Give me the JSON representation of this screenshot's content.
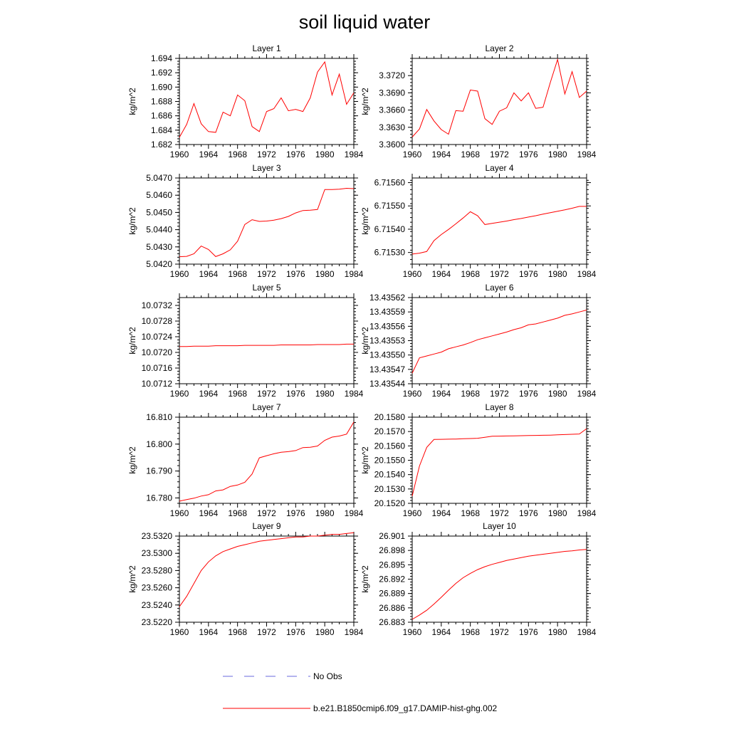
{
  "title": "soil liquid water",
  "legend": [
    {
      "label": "No Obs",
      "color": "#6a6adc",
      "style": "dashed"
    },
    {
      "label": "b.e21.B1850cmip6.f09_g17.DAMIP-hist-ghg.002",
      "color": "#ff0000",
      "style": "solid"
    }
  ],
  "chart_data": [
    {
      "type": "line",
      "title": "Layer 1",
      "ylabel": "kg/m^2",
      "xlim": [
        1960,
        1984
      ],
      "xticks": [
        "1960",
        "1964",
        "1968",
        "1972",
        "1976",
        "1980",
        "1984"
      ],
      "ylim": [
        1.682,
        1.694
      ],
      "yticks": [
        "1.682",
        "1.684",
        "1.686",
        "1.688",
        "1.690",
        "1.692",
        "1.694"
      ],
      "x": [
        1960,
        1961,
        1962,
        1963,
        1964,
        1965,
        1966,
        1967,
        1968,
        1969,
        1970,
        1971,
        1972,
        1973,
        1974,
        1975,
        1976,
        1977,
        1978,
        1979,
        1980,
        1981,
        1982,
        1983,
        1984
      ],
      "series": [
        {
          "values": [
            1.683,
            1.6848,
            1.6877,
            1.6849,
            1.6838,
            1.6837,
            1.6865,
            1.686,
            1.6889,
            1.6881,
            1.6845,
            1.6838,
            1.6866,
            1.687,
            1.6885,
            1.6867,
            1.6869,
            1.6866,
            1.6885,
            1.6921,
            1.6935,
            1.6889,
            1.6918,
            1.6876,
            1.6892
          ]
        }
      ]
    },
    {
      "type": "line",
      "title": "Layer 2",
      "ylabel": "kg/m^2",
      "xlim": [
        1960,
        1984
      ],
      "xticks": [
        "1960",
        "1964",
        "1968",
        "1972",
        "1976",
        "1980",
        "1984"
      ],
      "ylim": [
        3.36,
        3.375
      ],
      "yticks": [
        "3.3600",
        "3.3630",
        "3.3660",
        "3.3690",
        "3.3720"
      ],
      "x": [
        1960,
        1961,
        1962,
        1963,
        1964,
        1965,
        1966,
        1967,
        1968,
        1969,
        1970,
        1971,
        1972,
        1973,
        1974,
        1975,
        1976,
        1977,
        1978,
        1979,
        1980,
        1981,
        1982,
        1983,
        1984
      ],
      "series": [
        {
          "values": [
            3.3613,
            3.3627,
            3.3661,
            3.3641,
            3.3626,
            3.3618,
            3.3659,
            3.3658,
            3.3695,
            3.3693,
            3.3645,
            3.3635,
            3.3658,
            3.3664,
            3.369,
            3.3676,
            3.369,
            3.3663,
            3.3665,
            3.3708,
            3.3748,
            3.3688,
            3.3727,
            3.3682,
            3.3693
          ]
        }
      ]
    },
    {
      "type": "line",
      "title": "Layer 3",
      "ylabel": "kg/m^2",
      "xlim": [
        1960,
        1984
      ],
      "xticks": [
        "1960",
        "1964",
        "1968",
        "1972",
        "1976",
        "1980",
        "1984"
      ],
      "ylim": [
        5.042,
        5.047
      ],
      "yticks": [
        "5.0420",
        "5.0430",
        "5.0440",
        "5.0450",
        "5.0460",
        "5.0470"
      ],
      "x": [
        1960,
        1961,
        1962,
        1963,
        1964,
        1965,
        1966,
        1967,
        1968,
        1969,
        1970,
        1971,
        1972,
        1973,
        1974,
        1975,
        1976,
        1977,
        1978,
        1979,
        1980,
        1981,
        1982,
        1983,
        1984
      ],
      "series": [
        {
          "values": [
            5.04243,
            5.04245,
            5.0426,
            5.04305,
            5.04285,
            5.04244,
            5.0426,
            5.04283,
            5.04333,
            5.0443,
            5.04458,
            5.04448,
            5.0445,
            5.04455,
            5.04464,
            5.04477,
            5.04497,
            5.04511,
            5.04513,
            5.04517,
            5.04633,
            5.04633,
            5.04635,
            5.0464,
            5.04638
          ]
        }
      ]
    },
    {
      "type": "line",
      "title": "Layer 4",
      "ylabel": "kg/m^2",
      "xlim": [
        1960,
        1984
      ],
      "xticks": [
        "1960",
        "1964",
        "1968",
        "1972",
        "1976",
        "1980",
        "1984"
      ],
      "ylim": [
        6.71525,
        6.71562
      ],
      "yticks": [
        "6.71530",
        "6.71540",
        "6.71550",
        "6.71560"
      ],
      "x": [
        1960,
        1961,
        1962,
        1963,
        1964,
        1965,
        1966,
        1967,
        1968,
        1969,
        1970,
        1971,
        1972,
        1973,
        1974,
        1975,
        1976,
        1977,
        1978,
        1979,
        1980,
        1981,
        1982,
        1983,
        1984
      ],
      "series": [
        {
          "values": [
            6.715293,
            6.715297,
            6.715304,
            6.715351,
            6.715377,
            6.715399,
            6.715423,
            6.715448,
            6.715475,
            6.715458,
            6.71542,
            6.715425,
            6.71543,
            6.715435,
            6.715441,
            6.715446,
            6.715452,
            6.715458,
            6.715465,
            6.715471,
            6.715477,
            6.715483,
            6.71549,
            6.715498,
            6.715498
          ]
        }
      ]
    },
    {
      "type": "line",
      "title": "Layer 5",
      "ylabel": "kg/m^2",
      "xlim": [
        1960,
        1984
      ],
      "xticks": [
        "1960",
        "1964",
        "1968",
        "1972",
        "1976",
        "1980",
        "1984"
      ],
      "ylim": [
        10.0712,
        10.0734
      ],
      "yticks": [
        "10.0712",
        "10.0716",
        "10.0720",
        "10.0724",
        "10.0728",
        "10.0732"
      ],
      "x": [
        1960,
        1961,
        1962,
        1963,
        1964,
        1965,
        1966,
        1967,
        1968,
        1969,
        1970,
        1971,
        1972,
        1973,
        1974,
        1975,
        1976,
        1977,
        1978,
        1979,
        1980,
        1981,
        1982,
        1983,
        1984
      ],
      "series": [
        {
          "values": [
            10.07215,
            10.07215,
            10.07216,
            10.07216,
            10.07216,
            10.07217,
            10.07217,
            10.07217,
            10.07217,
            10.07218,
            10.07218,
            10.07218,
            10.07218,
            10.07218,
            10.07219,
            10.07219,
            10.07219,
            10.07219,
            10.07219,
            10.0722,
            10.0722,
            10.0722,
            10.0722,
            10.07221,
            10.07221
          ]
        }
      ]
    },
    {
      "type": "line",
      "title": "Layer 6",
      "ylabel": "kg/m^2",
      "xlim": [
        1960,
        1984
      ],
      "xticks": [
        "1960",
        "1964",
        "1968",
        "1972",
        "1976",
        "1980",
        "1984"
      ],
      "ylim": [
        13.43544,
        13.43562
      ],
      "yticks": [
        "13.43544",
        "13.43547",
        "13.43550",
        "13.43553",
        "13.43556",
        "13.43559",
        "13.43562"
      ],
      "x": [
        1960,
        1961,
        1962,
        1963,
        1964,
        1965,
        1966,
        1967,
        1968,
        1969,
        1970,
        1971,
        1972,
        1973,
        1974,
        1975,
        1976,
        1977,
        1978,
        1979,
        1980,
        1981,
        1982,
        1983,
        1984
      ],
      "series": [
        {
          "values": [
            13.435462,
            13.435494,
            13.435498,
            13.435502,
            13.435506,
            13.435513,
            13.435517,
            13.435521,
            13.435526,
            13.435532,
            13.435536,
            13.43554,
            13.435544,
            13.435548,
            13.435553,
            13.435557,
            13.435563,
            13.435565,
            13.435569,
            13.435573,
            13.435577,
            13.435583,
            13.435586,
            13.43559,
            13.435594
          ]
        }
      ]
    },
    {
      "type": "line",
      "title": "Layer 7",
      "ylabel": "kg/m^2",
      "xlim": [
        1960,
        1984
      ],
      "xticks": [
        "1960",
        "1964",
        "1968",
        "1972",
        "1976",
        "1980",
        "1984"
      ],
      "ylim": [
        16.778,
        16.81
      ],
      "yticks": [
        "16.780",
        "16.790",
        "16.800",
        "16.810"
      ],
      "x": [
        1960,
        1961,
        1962,
        1963,
        1964,
        1965,
        1966,
        1967,
        1968,
        1969,
        1970,
        1971,
        1972,
        1973,
        1974,
        1975,
        1976,
        1977,
        1978,
        1979,
        1980,
        1981,
        1982,
        1983,
        1984
      ],
      "series": [
        {
          "values": [
            16.7788,
            16.7794,
            16.7799,
            16.7807,
            16.7812,
            16.7826,
            16.783,
            16.7843,
            16.7848,
            16.7858,
            16.7889,
            16.7949,
            16.7957,
            16.7964,
            16.797,
            16.7972,
            16.7976,
            16.7987,
            16.7988,
            16.7993,
            16.8014,
            16.8026,
            16.803,
            16.8037,
            16.8082
          ]
        }
      ]
    },
    {
      "type": "line",
      "title": "Layer 8",
      "ylabel": "kg/m^2",
      "xlim": [
        1960,
        1984
      ],
      "xticks": [
        "1960",
        "1964",
        "1968",
        "1972",
        "1976",
        "1980",
        "1984"
      ],
      "ylim": [
        20.152,
        20.158
      ],
      "yticks": [
        "20.1520",
        "20.1530",
        "20.1540",
        "20.1550",
        "20.1560",
        "20.1570",
        "20.1580"
      ],
      "x": [
        1960,
        1961,
        1962,
        1963,
        1964,
        1965,
        1966,
        1967,
        1968,
        1969,
        1970,
        1971,
        1972,
        1973,
        1974,
        1975,
        1976,
        1977,
        1978,
        1979,
        1980,
        1981,
        1982,
        1983,
        1984
      ],
      "series": [
        {
          "values": [
            20.1525,
            20.1546,
            20.1559,
            20.15645,
            20.15646,
            20.15647,
            20.15648,
            20.1565,
            20.15651,
            20.15653,
            20.1566,
            20.15667,
            20.15668,
            20.15669,
            20.1567,
            20.15671,
            20.15672,
            20.15673,
            20.15674,
            20.15675,
            20.15677,
            20.15679,
            20.15681,
            20.15683,
            20.1572
          ]
        }
      ]
    },
    {
      "type": "line",
      "title": "Layer 9",
      "ylabel": "kg/m^2",
      "xlim": [
        1960,
        1984
      ],
      "xticks": [
        "1960",
        "1964",
        "1968",
        "1972",
        "1976",
        "1980",
        "1984"
      ],
      "ylim": [
        23.522,
        23.532
      ],
      "yticks": [
        "23.5220",
        "23.5240",
        "23.5260",
        "23.5280",
        "23.5300",
        "23.5320"
      ],
      "x": [
        1960,
        1961,
        1962,
        1963,
        1964,
        1965,
        1966,
        1967,
        1968,
        1969,
        1970,
        1971,
        1972,
        1973,
        1974,
        1975,
        1976,
        1977,
        1978,
        1979,
        1980,
        1981,
        1982,
        1983,
        1984
      ],
      "series": [
        {
          "values": [
            23.5238,
            23.525,
            23.5265,
            23.528,
            23.529,
            23.5297,
            23.5302,
            23.5305,
            23.5308,
            23.531,
            23.5312,
            23.5314,
            23.5315,
            23.5316,
            23.5317,
            23.5318,
            23.5319,
            23.5319,
            23.532,
            23.532,
            23.5321,
            23.5322,
            23.5322,
            23.5323,
            23.5324
          ]
        }
      ]
    },
    {
      "type": "line",
      "title": "Layer 10",
      "ylabel": "kg/m^2",
      "xlim": [
        1960,
        1984
      ],
      "xticks": [
        "1960",
        "1964",
        "1968",
        "1972",
        "1976",
        "1980",
        "1984"
      ],
      "ylim": [
        26.883,
        26.901
      ],
      "yticks": [
        "26.883",
        "26.886",
        "26.889",
        "26.892",
        "26.895",
        "26.898",
        "26.901"
      ],
      "x": [
        1960,
        1961,
        1962,
        1963,
        1964,
        1965,
        1966,
        1967,
        1968,
        1969,
        1970,
        1971,
        1972,
        1973,
        1974,
        1975,
        1976,
        1977,
        1978,
        1979,
        1980,
        1981,
        1982,
        1983,
        1984
      ],
      "series": [
        {
          "values": [
            26.8836,
            26.8845,
            26.8855,
            26.8868,
            26.8882,
            26.8897,
            26.8911,
            26.8923,
            26.8932,
            26.894,
            26.8946,
            26.8951,
            26.8955,
            26.8959,
            26.8962,
            26.8965,
            26.8968,
            26.897,
            26.8972,
            26.8974,
            26.8976,
            26.8978,
            26.8979,
            26.8981,
            26.8982
          ]
        }
      ]
    }
  ]
}
